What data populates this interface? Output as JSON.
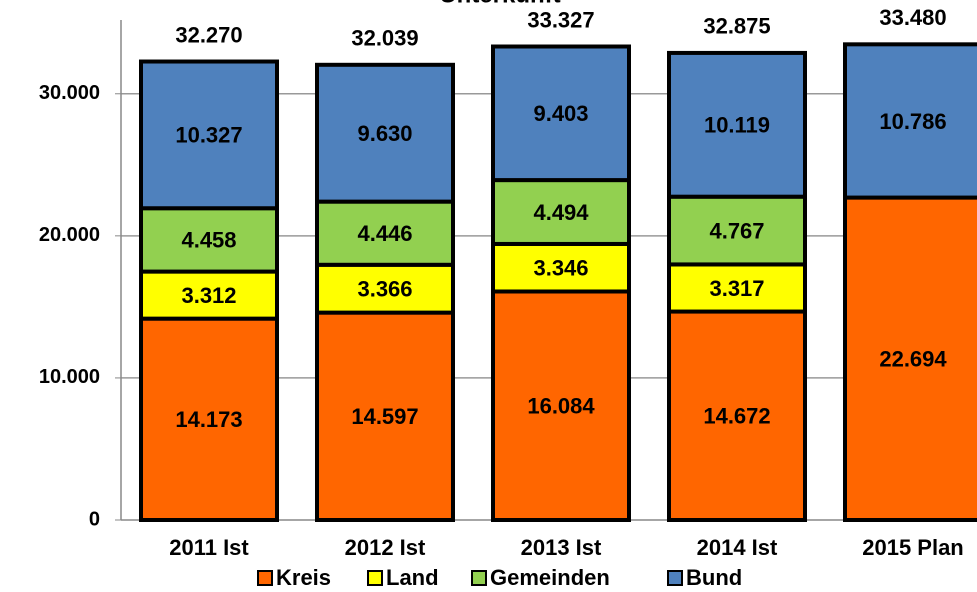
{
  "chart_data": {
    "type": "stacked_bar",
    "title": "Unterkunft",
    "categories": [
      "2011 Ist",
      "2012 Ist",
      "2013 Ist",
      "2014 Ist",
      "2015 Plan"
    ],
    "series": [
      {
        "name": "Kreis",
        "color": "#ff6600",
        "values": [
          14173,
          14597,
          16084,
          14672,
          22694
        ],
        "value_labels": [
          "14.173",
          "14.597",
          "16.084",
          "14.672",
          "22.694"
        ]
      },
      {
        "name": "Land",
        "color": "#ffff00",
        "values": [
          3312,
          3366,
          3346,
          3317,
          null
        ],
        "value_labels": [
          "3.312",
          "3.366",
          "3.346",
          "3.317",
          null
        ]
      },
      {
        "name": "Gemeinden",
        "color": "#92d050",
        "values": [
          4458,
          4446,
          4494,
          4767,
          null
        ],
        "value_labels": [
          "4.458",
          "4.446",
          "4.494",
          "4.767",
          null
        ]
      },
      {
        "name": "Bund",
        "color": "#4f81bd",
        "values": [
          10327,
          9630,
          9403,
          10119,
          10786
        ],
        "value_labels": [
          "10.327",
          "9.630",
          "9.403",
          "10.119",
          "10.786"
        ]
      }
    ],
    "totals": {
      "values": [
        32270,
        32039,
        33327,
        32875,
        33480
      ],
      "value_labels": [
        "32.270",
        "32.039",
        "33.327",
        "32.875",
        "33.480"
      ]
    },
    "ylim": [
      0,
      36600
    ],
    "yticks": [
      0,
      {
        "value": 10000,
        "label": "10.000"
      },
      {
        "value": 20000,
        "label": "20.000"
      },
      {
        "value": 30000,
        "label": "30.000"
      }
    ],
    "grid": true,
    "legend": "bottom"
  }
}
